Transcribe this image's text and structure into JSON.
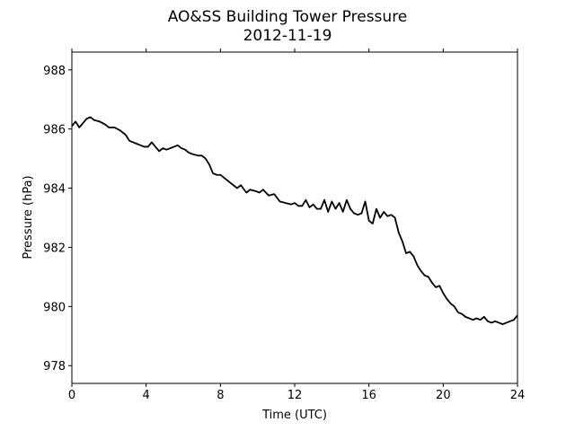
{
  "chart_data": {
    "type": "line",
    "title": "AO&SS Building Tower Pressure",
    "subtitle": "2012-11-19",
    "xlabel": "Time (UTC)",
    "ylabel": "Pressure (hPa)",
    "xlim": [
      0,
      24
    ],
    "ylim": [
      977.4,
      988.6
    ],
    "xticks": [
      0,
      4,
      8,
      12,
      16,
      20,
      24
    ],
    "yticks": [
      978,
      980,
      982,
      984,
      986,
      988
    ],
    "grid": false,
    "line_color": "#000000",
    "series": [
      {
        "x": [
          0,
          0.2,
          0.4,
          0.6,
          0.8,
          1.0,
          1.2,
          1.5,
          1.8,
          2.0,
          2.3,
          2.6,
          2.9,
          3.1,
          3.3,
          3.5,
          3.7,
          3.9,
          4.1,
          4.3,
          4.5,
          4.7,
          4.9,
          5.1,
          5.3,
          5.5,
          5.7,
          5.9,
          6.1,
          6.3,
          6.5,
          6.8,
          7.0,
          7.2,
          7.4,
          7.6,
          7.8,
          8.0,
          8.3,
          8.6,
          8.9,
          9.1,
          9.4,
          9.6,
          9.9,
          10.1,
          10.3,
          10.6,
          10.9,
          11.2,
          11.5,
          11.8,
          12.0,
          12.2,
          12.4,
          12.6,
          12.8,
          13.0,
          13.2,
          13.4,
          13.6,
          13.8,
          14.0,
          14.2,
          14.4,
          14.6,
          14.8,
          15.0,
          15.2,
          15.4,
          15.6,
          15.8,
          16.0,
          16.2,
          16.4,
          16.6,
          16.8,
          17.0,
          17.2,
          17.4,
          17.6,
          17.8,
          18.0,
          18.2,
          18.4,
          18.6,
          18.8,
          19.0,
          19.2,
          19.4,
          19.6,
          19.8,
          20.0,
          20.2,
          20.4,
          20.6,
          20.8,
          21.0,
          21.2,
          21.4,
          21.6,
          21.8,
          22.0,
          22.2,
          22.4,
          22.6,
          22.8,
          23.0,
          23.2,
          23.4,
          23.6,
          23.8,
          24.0
        ],
        "y": [
          986.1,
          986.25,
          986.05,
          986.2,
          986.35,
          986.4,
          986.3,
          986.25,
          986.15,
          986.05,
          986.05,
          985.95,
          985.8,
          985.6,
          985.55,
          985.5,
          985.45,
          985.4,
          985.4,
          985.55,
          985.4,
          985.25,
          985.35,
          985.3,
          985.35,
          985.4,
          985.45,
          985.35,
          985.3,
          985.2,
          985.15,
          985.1,
          985.1,
          985.0,
          984.8,
          984.5,
          984.45,
          984.45,
          984.3,
          984.15,
          984.0,
          984.1,
          983.85,
          983.95,
          983.9,
          983.85,
          983.95,
          983.75,
          983.8,
          983.55,
          983.5,
          983.45,
          983.5,
          983.4,
          983.4,
          983.6,
          983.35,
          983.45,
          983.3,
          983.3,
          983.6,
          983.2,
          983.55,
          983.3,
          983.5,
          983.2,
          983.6,
          983.3,
          983.15,
          983.1,
          983.15,
          983.55,
          982.9,
          982.8,
          983.3,
          983.0,
          983.2,
          983.05,
          983.1,
          983.0,
          982.5,
          982.2,
          981.8,
          981.85,
          981.7,
          981.4,
          981.2,
          981.05,
          981.0,
          980.8,
          980.65,
          980.7,
          980.45,
          980.25,
          980.1,
          980.0,
          979.8,
          979.75,
          979.65,
          979.6,
          979.55,
          979.6,
          979.55,
          979.65,
          979.5,
          979.45,
          979.5,
          979.45,
          979.4,
          979.45,
          979.5,
          979.55,
          979.7
        ]
      }
    ]
  }
}
